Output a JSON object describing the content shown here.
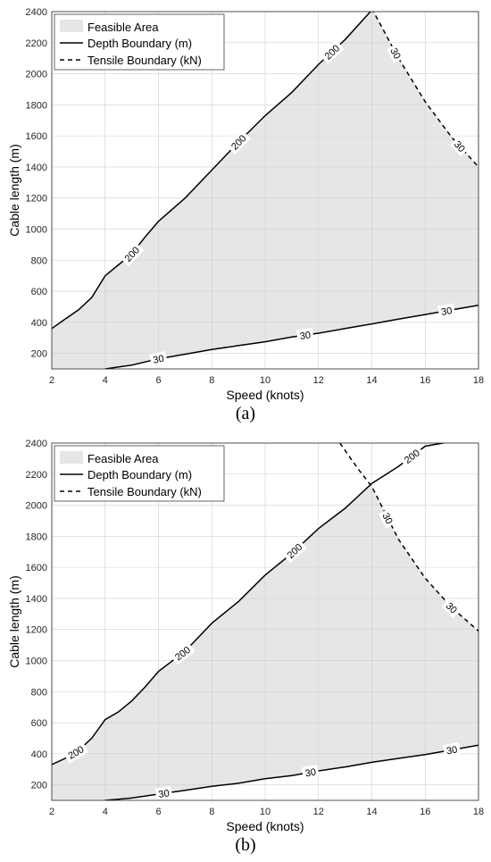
{
  "chart_data": [
    {
      "type": "area",
      "caption": "(a)",
      "xlabel": "Speed (knots)",
      "ylabel": "Cable length (m)",
      "xlim": [
        2,
        18
      ],
      "ylim": [
        100,
        2400
      ],
      "xticks": [
        2,
        4,
        6,
        8,
        10,
        12,
        14,
        16,
        18
      ],
      "yticks": [
        200,
        400,
        600,
        800,
        1000,
        1200,
        1400,
        1600,
        1800,
        2000,
        2200,
        2400
      ],
      "grid": true,
      "legend_position": "top-left",
      "legend": [
        "Feasible Area",
        "Depth Boundary (m)",
        "Tensile Boundary (kN)"
      ],
      "series": [
        {
          "name": "Depth Boundary (m)",
          "contour_label": "200",
          "style": "solid",
          "x": [
            2,
            2.5,
            3,
            3.5,
            4,
            4.5,
            5,
            5.5,
            6,
            7,
            8,
            9,
            10,
            11,
            12,
            13,
            14
          ],
          "y": [
            360,
            420,
            480,
            560,
            700,
            770,
            840,
            950,
            1050,
            1200,
            1380,
            1560,
            1730,
            1880,
            2060,
            2220,
            2410
          ],
          "label_at_x": [
            5,
            9,
            12.5
          ]
        },
        {
          "name": "Depth Boundary (m)",
          "contour_label": "30",
          "style": "solid",
          "x": [
            4,
            5,
            6,
            7,
            8,
            9,
            10,
            11,
            12,
            13,
            14,
            15,
            16,
            17,
            18
          ],
          "y": [
            100,
            125,
            165,
            195,
            225,
            250,
            275,
            305,
            330,
            360,
            390,
            420,
            450,
            480,
            510
          ],
          "label_at_x": [
            6,
            11.5,
            16.8
          ]
        },
        {
          "name": "Tensile Boundary (kN)",
          "contour_label": "30",
          "style": "dashed",
          "x": [
            14,
            15,
            16,
            17,
            18
          ],
          "y": [
            2420,
            2100,
            1820,
            1590,
            1400
          ],
          "label_at_x": [
            14.9,
            17.3
          ]
        }
      ],
      "feasible_area_color": "#e6e6e6"
    },
    {
      "type": "area",
      "caption": "(b)",
      "xlabel": "Speed (knots)",
      "ylabel": "Cable length (m)",
      "xlim": [
        2,
        18
      ],
      "ylim": [
        100,
        2400
      ],
      "xticks": [
        2,
        4,
        6,
        8,
        10,
        12,
        14,
        16,
        18
      ],
      "yticks": [
        200,
        400,
        600,
        800,
        1000,
        1200,
        1400,
        1600,
        1800,
        2000,
        2200,
        2400
      ],
      "grid": true,
      "legend_position": "top-left",
      "legend": [
        "Feasible Area",
        "Depth Boundary (m)",
        "Tensile Boundary (kN)"
      ],
      "series": [
        {
          "name": "Depth Boundary (m)",
          "contour_label": "200",
          "style": "solid",
          "x": [
            2,
            2.5,
            3,
            3.5,
            4,
            4.5,
            5,
            5.5,
            6,
            7,
            8,
            9,
            10,
            11,
            12,
            13,
            14,
            15,
            16,
            17,
            17.2
          ],
          "y": [
            330,
            370,
            420,
            500,
            620,
            670,
            740,
            830,
            930,
            1060,
            1240,
            1380,
            1550,
            1690,
            1850,
            1980,
            2140,
            2250,
            2380,
            2410,
            2410
          ],
          "label_at_x": [
            2.9,
            6.9,
            11.1,
            15.5
          ]
        },
        {
          "name": "Depth Boundary (m)",
          "contour_label": "30",
          "style": "solid",
          "x": [
            4,
            5,
            6,
            7,
            8,
            9,
            10,
            11,
            12,
            13,
            14,
            15,
            16,
            17,
            18
          ],
          "y": [
            100,
            115,
            140,
            165,
            190,
            210,
            240,
            260,
            290,
            315,
            345,
            370,
            395,
            425,
            455
          ],
          "label_at_x": [
            6.2,
            11.7,
            17
          ]
        },
        {
          "name": "Tensile Boundary (kN)",
          "contour_label": "30",
          "style": "dashed",
          "x": [
            12.8,
            13.5,
            14,
            15,
            16,
            17,
            18
          ],
          "y": [
            2400,
            2230,
            2120,
            1780,
            1530,
            1340,
            1190
          ],
          "label_at_x": [
            14.6,
            17
          ]
        }
      ],
      "feasible_area_color": "#e6e6e6"
    }
  ]
}
